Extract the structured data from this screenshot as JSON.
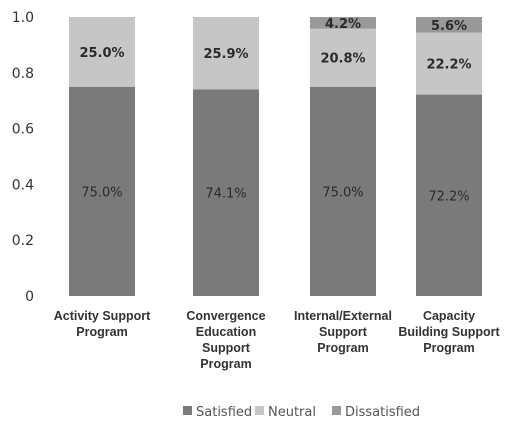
{
  "chart_data": {
    "type": "bar",
    "stacked": true,
    "categories": [
      [
        "Activity Support",
        "Program"
      ],
      [
        "Convergence",
        "Education",
        "Support",
        "Program"
      ],
      [
        "Internal/External",
        "Support",
        "Program"
      ],
      [
        "Capacity",
        "Building Support",
        "Program"
      ]
    ],
    "series": [
      {
        "name": "Satisfied",
        "values": [
          0.75,
          0.741,
          0.75,
          0.722
        ],
        "labels": [
          "75.0%",
          "74.1%",
          "75.0%",
          "72.2%"
        ],
        "color": "#7a7a7a"
      },
      {
        "name": "Neutral",
        "values": [
          0.25,
          0.259,
          0.208,
          0.222
        ],
        "labels": [
          "25.0%",
          "25.9%",
          "20.8%",
          "22.2%"
        ],
        "color": "#c6c6c6"
      },
      {
        "name": "Dissatisfied",
        "values": [
          0,
          0,
          0.042,
          0.056
        ],
        "labels": [
          "",
          "",
          "4.2%",
          "5.6%"
        ],
        "color": "#999999"
      }
    ],
    "ylim": [
      0,
      1
    ],
    "yticks": [
      "0",
      "0.2",
      "0.4",
      "0.6",
      "0.8",
      "1.0"
    ],
    "legend_position": "bottom"
  }
}
